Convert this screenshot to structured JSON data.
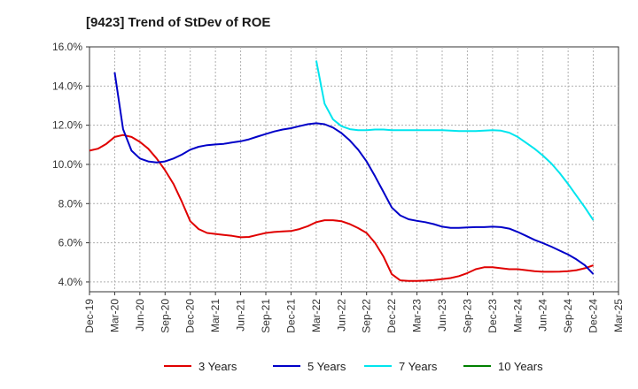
{
  "chart_data": {
    "type": "line",
    "title": "[9423]  Trend of StDev of ROE",
    "xlabel": "",
    "ylabel": "",
    "ylim": [
      3.5,
      16.0
    ],
    "y_ticks": [
      "4.0%",
      "6.0%",
      "8.0%",
      "10.0%",
      "12.0%",
      "14.0%",
      "16.0%"
    ],
    "y_tick_values": [
      4,
      6,
      8,
      10,
      12,
      14,
      16
    ],
    "x_ticks": [
      "Dec-19",
      "Mar-20",
      "Jun-20",
      "Sep-20",
      "Dec-20",
      "Mar-21",
      "Jun-21",
      "Sep-21",
      "Dec-21",
      "Mar-22",
      "Jun-22",
      "Sep-22",
      "Dec-22",
      "Mar-23",
      "Jun-23",
      "Sep-23",
      "Dec-23",
      "Mar-24",
      "Jun-24",
      "Sep-24",
      "Dec-24",
      "Mar-25"
    ],
    "grid": true,
    "legend_position": "bottom",
    "series": [
      {
        "name": "3 Years",
        "color": "#e00000",
        "x": [
          "2019-12",
          "2020-01",
          "2020-02",
          "2020-03",
          "2020-04",
          "2020-05",
          "2020-06",
          "2020-07",
          "2020-08",
          "2020-09",
          "2020-10",
          "2020-11",
          "2020-12",
          "2021-01",
          "2021-02",
          "2021-03",
          "2021-04",
          "2021-05",
          "2021-06",
          "2021-07",
          "2021-08",
          "2021-09",
          "2021-10",
          "2021-11",
          "2021-12",
          "2022-01",
          "2022-02",
          "2022-03",
          "2022-04",
          "2022-05",
          "2022-06",
          "2022-07",
          "2022-08",
          "2022-09",
          "2022-10",
          "2022-11",
          "2022-12",
          "2023-01",
          "2023-02",
          "2023-03",
          "2023-04",
          "2023-05",
          "2023-06",
          "2023-07",
          "2023-08",
          "2023-09",
          "2023-10",
          "2023-11",
          "2023-12",
          "2024-01",
          "2024-02",
          "2024-03",
          "2024-04",
          "2024-05",
          "2024-06",
          "2024-07",
          "2024-08",
          "2024-09",
          "2024-10",
          "2024-11",
          "2024-12"
        ],
        "values": [
          10.7,
          10.8,
          11.05,
          11.4,
          11.5,
          11.4,
          11.15,
          10.8,
          10.3,
          9.7,
          9.0,
          8.1,
          7.1,
          6.7,
          6.5,
          6.45,
          6.4,
          6.35,
          6.28,
          6.3,
          6.4,
          6.5,
          6.55,
          6.58,
          6.6,
          6.7,
          6.85,
          7.05,
          7.15,
          7.15,
          7.1,
          6.95,
          6.75,
          6.5,
          6.0,
          5.3,
          4.4,
          4.08,
          4.05,
          4.05,
          4.07,
          4.1,
          4.15,
          4.2,
          4.3,
          4.45,
          4.65,
          4.75,
          4.75,
          4.7,
          4.65,
          4.65,
          4.6,
          4.55,
          4.52,
          4.52,
          4.53,
          4.55,
          4.6,
          4.7,
          4.85
        ]
      },
      {
        "name": "5 Years",
        "color": "#0000c8",
        "x": [
          "2020-03",
          "2020-04",
          "2020-05",
          "2020-06",
          "2020-07",
          "2020-08",
          "2020-09",
          "2020-10",
          "2020-11",
          "2020-12",
          "2021-01",
          "2021-02",
          "2021-03",
          "2021-04",
          "2021-05",
          "2021-06",
          "2021-07",
          "2021-08",
          "2021-09",
          "2021-10",
          "2021-11",
          "2021-12",
          "2022-01",
          "2022-02",
          "2022-03",
          "2022-04",
          "2022-05",
          "2022-06",
          "2022-07",
          "2022-08",
          "2022-09",
          "2022-10",
          "2022-11",
          "2022-12",
          "2023-01",
          "2023-02",
          "2023-03",
          "2023-04",
          "2023-05",
          "2023-06",
          "2023-07",
          "2023-08",
          "2023-09",
          "2023-10",
          "2023-11",
          "2023-12",
          "2024-01",
          "2024-02",
          "2024-03",
          "2024-04",
          "2024-05",
          "2024-06",
          "2024-07",
          "2024-08",
          "2024-09",
          "2024-10",
          "2024-11",
          "2024-12"
        ],
        "values": [
          14.7,
          11.8,
          10.7,
          10.3,
          10.15,
          10.1,
          10.15,
          10.3,
          10.5,
          10.75,
          10.9,
          10.98,
          11.02,
          11.05,
          11.12,
          11.18,
          11.28,
          11.42,
          11.55,
          11.68,
          11.78,
          11.85,
          11.95,
          12.05,
          12.1,
          12.05,
          11.88,
          11.6,
          11.22,
          10.75,
          10.15,
          9.4,
          8.6,
          7.8,
          7.4,
          7.2,
          7.12,
          7.05,
          6.95,
          6.82,
          6.76,
          6.76,
          6.78,
          6.8,
          6.8,
          6.82,
          6.8,
          6.72,
          6.55,
          6.35,
          6.15,
          5.98,
          5.8,
          5.6,
          5.4,
          5.15,
          4.85,
          4.4
        ]
      },
      {
        "name": "7 Years",
        "color": "#00e5ee",
        "x": [
          "2022-03",
          "2022-04",
          "2022-05",
          "2022-06",
          "2022-07",
          "2022-08",
          "2022-09",
          "2022-10",
          "2022-11",
          "2022-12",
          "2023-01",
          "2023-02",
          "2023-03",
          "2023-04",
          "2023-05",
          "2023-06",
          "2023-07",
          "2023-08",
          "2023-09",
          "2023-10",
          "2023-11",
          "2023-12",
          "2024-01",
          "2024-02",
          "2024-03",
          "2024-04",
          "2024-05",
          "2024-06",
          "2024-07",
          "2024-08",
          "2024-09",
          "2024-10",
          "2024-11",
          "2024-12"
        ],
        "values": [
          15.3,
          13.1,
          12.3,
          11.95,
          11.8,
          11.75,
          11.75,
          11.78,
          11.78,
          11.75,
          11.75,
          11.75,
          11.75,
          11.75,
          11.75,
          11.75,
          11.72,
          11.7,
          11.7,
          11.7,
          11.72,
          11.75,
          11.72,
          11.62,
          11.4,
          11.1,
          10.8,
          10.45,
          10.05,
          9.55,
          9.0,
          8.4,
          7.8,
          7.15
        ]
      },
      {
        "name": "10 Years",
        "color": "#008000",
        "x": [],
        "values": []
      }
    ]
  }
}
